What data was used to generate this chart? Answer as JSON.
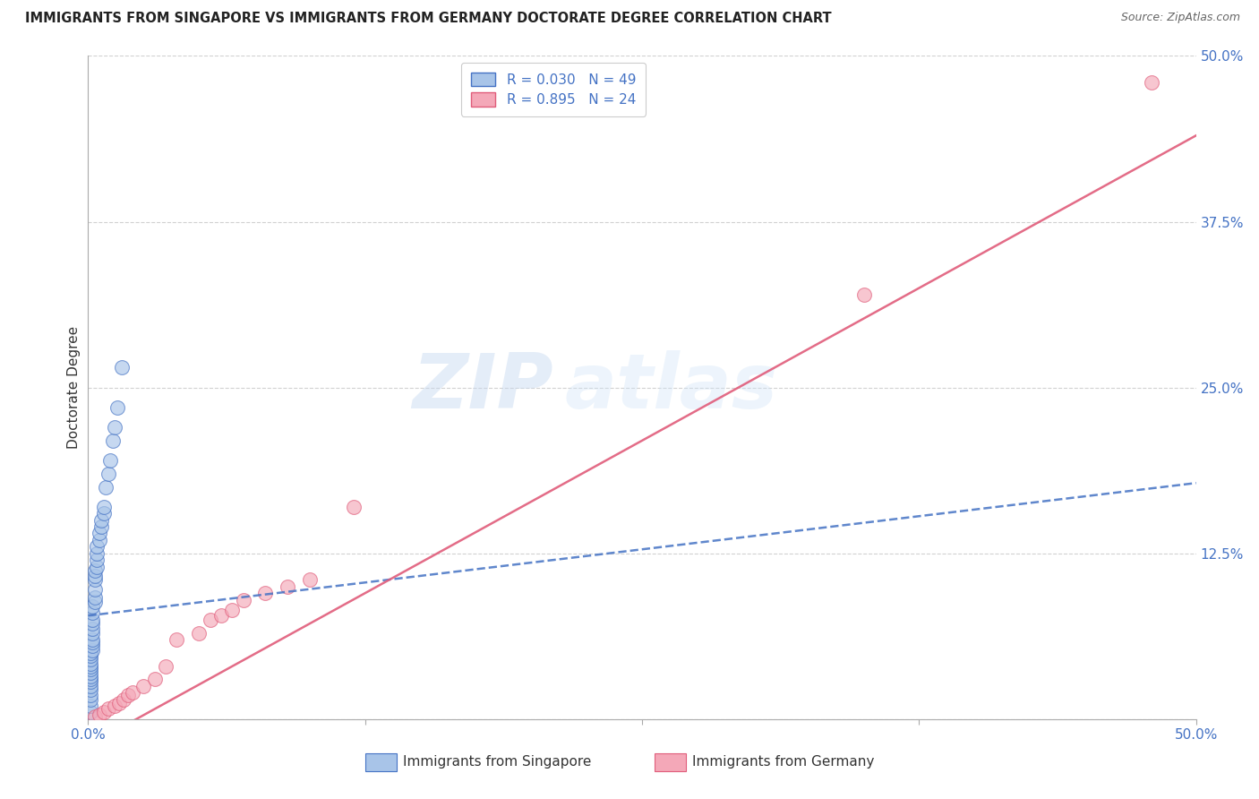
{
  "title": "IMMIGRANTS FROM SINGAPORE VS IMMIGRANTS FROM GERMANY DOCTORATE DEGREE CORRELATION CHART",
  "source": "Source: ZipAtlas.com",
  "ylabel": "Doctorate Degree",
  "xlim": [
    0.0,
    0.5
  ],
  "ylim": [
    0.0,
    0.5
  ],
  "xticks": [
    0.0,
    0.125,
    0.25,
    0.375,
    0.5
  ],
  "yticks": [
    0.0,
    0.125,
    0.25,
    0.375,
    0.5
  ],
  "grid_color": "#cccccc",
  "background_color": "#ffffff",
  "watermark_zip": "ZIP",
  "watermark_atlas": "atlas",
  "legend_r1": "R = 0.030",
  "legend_n1": "N = 49",
  "legend_r2": "R = 0.895",
  "legend_n2": "N = 24",
  "color_singapore": "#a8c4e8",
  "color_germany": "#f4a8b8",
  "line_color_singapore": "#4472c4",
  "line_color_germany": "#e05c7a",
  "label_singapore": "Immigrants from Singapore",
  "label_germany": "Immigrants from Germany",
  "singapore_x": [
    0.001,
    0.001,
    0.001,
    0.001,
    0.001,
    0.001,
    0.001,
    0.001,
    0.001,
    0.001,
    0.001,
    0.001,
    0.001,
    0.001,
    0.001,
    0.001,
    0.002,
    0.002,
    0.002,
    0.002,
    0.002,
    0.002,
    0.002,
    0.002,
    0.002,
    0.002,
    0.003,
    0.003,
    0.003,
    0.003,
    0.003,
    0.003,
    0.004,
    0.004,
    0.004,
    0.004,
    0.005,
    0.005,
    0.006,
    0.006,
    0.007,
    0.007,
    0.008,
    0.009,
    0.01,
    0.011,
    0.012,
    0.013,
    0.015
  ],
  "singapore_y": [
    0.005,
    0.01,
    0.015,
    0.018,
    0.022,
    0.025,
    0.028,
    0.03,
    0.032,
    0.035,
    0.038,
    0.04,
    0.042,
    0.045,
    0.048,
    0.05,
    0.052,
    0.055,
    0.058,
    0.06,
    0.065,
    0.068,
    0.072,
    0.075,
    0.08,
    0.085,
    0.088,
    0.092,
    0.098,
    0.105,
    0.108,
    0.112,
    0.115,
    0.12,
    0.125,
    0.13,
    0.135,
    0.14,
    0.145,
    0.15,
    0.155,
    0.16,
    0.175,
    0.185,
    0.195,
    0.21,
    0.22,
    0.235,
    0.265
  ],
  "germany_x": [
    0.003,
    0.005,
    0.007,
    0.009,
    0.012,
    0.014,
    0.016,
    0.018,
    0.02,
    0.025,
    0.03,
    0.035,
    0.04,
    0.05,
    0.055,
    0.06,
    0.065,
    0.07,
    0.08,
    0.09,
    0.1,
    0.12,
    0.48,
    0.35
  ],
  "germany_y": [
    0.002,
    0.003,
    0.005,
    0.008,
    0.01,
    0.012,
    0.015,
    0.018,
    0.02,
    0.025,
    0.03,
    0.04,
    0.06,
    0.065,
    0.075,
    0.078,
    0.082,
    0.09,
    0.095,
    0.1,
    0.105,
    0.16,
    0.48,
    0.32
  ]
}
